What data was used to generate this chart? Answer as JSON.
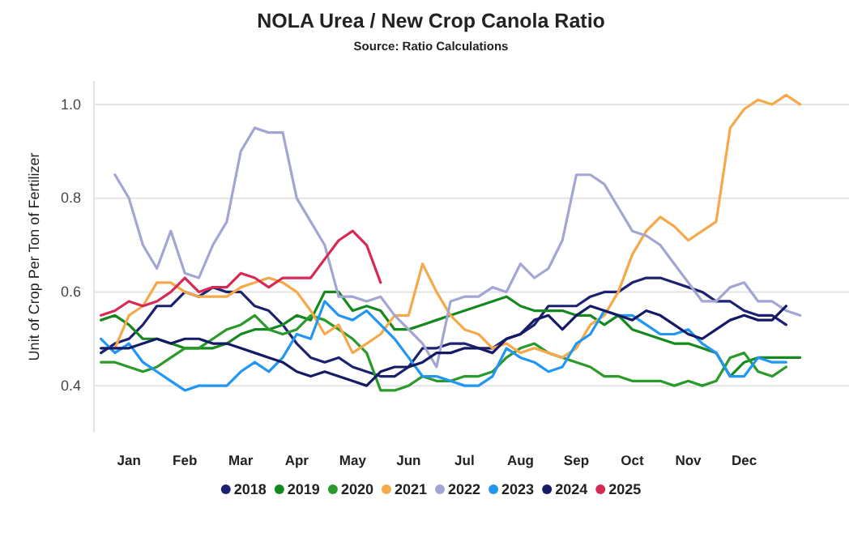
{
  "chart_data": {
    "type": "line",
    "title": "NOLA Urea / New Crop Canola Ratio",
    "subtitle": "Source: Ratio Calculations",
    "ylabel": "Unit of Crop Per Ton of Fertilizer",
    "categories": [
      null,
      null,
      "Jan",
      null,
      null,
      null,
      "Feb",
      null,
      null,
      null,
      "Mar",
      null,
      null,
      null,
      "Apr",
      null,
      null,
      null,
      "May",
      null,
      null,
      null,
      "Jun",
      null,
      null,
      null,
      "Jul",
      null,
      null,
      null,
      "Aug",
      null,
      null,
      null,
      "Sep",
      null,
      null,
      null,
      "Oct",
      null,
      null,
      null,
      "Nov",
      null,
      null,
      null,
      "Dec",
      null,
      null,
      null,
      null
    ],
    "ylim": [
      0.3,
      1.05
    ],
    "yticks": [
      {
        "value": 0.4,
        "label": "0.4"
      },
      {
        "value": 0.6,
        "label": "0.6"
      },
      {
        "value": 0.8,
        "label": "0.8"
      },
      {
        "value": 1.0,
        "label": "1.0"
      }
    ],
    "grid": "y",
    "legend": "bottom",
    "marker": "none",
    "line_style": "solid",
    "series": [
      {
        "name": "2018",
        "color": "#1c2270",
        "values": [
          0.47,
          0.49,
          0.5,
          0.53,
          0.57,
          0.57,
          0.6,
          0.59,
          0.61,
          0.6,
          0.6,
          0.57,
          0.56,
          0.53,
          0.49,
          0.46,
          0.45,
          0.46,
          0.44,
          0.43,
          0.42,
          0.42,
          0.44,
          0.48,
          0.48,
          0.49,
          0.49,
          0.48,
          0.48,
          0.5,
          0.51,
          0.53,
          0.57,
          0.57,
          0.57,
          0.59,
          0.6,
          0.6,
          0.62,
          0.63,
          0.63,
          0.62,
          0.61,
          0.6,
          0.58,
          0.58,
          0.56,
          0.55,
          0.55,
          0.53,
          null
        ]
      },
      {
        "name": "2019",
        "color": "#16891e",
        "values": [
          0.54,
          0.55,
          0.53,
          0.5,
          0.5,
          0.49,
          0.48,
          0.48,
          0.48,
          0.49,
          0.51,
          0.52,
          0.52,
          0.53,
          0.55,
          0.54,
          0.6,
          0.6,
          0.56,
          0.57,
          0.56,
          0.52,
          0.52,
          0.53,
          0.54,
          0.55,
          0.56,
          0.57,
          0.58,
          0.59,
          0.57,
          0.56,
          0.56,
          0.56,
          0.55,
          0.55,
          0.53,
          0.55,
          0.52,
          0.51,
          0.5,
          0.49,
          0.49,
          0.48,
          0.47,
          0.42,
          0.45,
          0.46,
          0.46,
          0.46,
          0.46
        ]
      },
      {
        "name": "2020",
        "color": "#2a9a2a",
        "values": [
          0.45,
          0.45,
          0.44,
          0.43,
          0.44,
          0.46,
          0.48,
          0.48,
          0.5,
          0.52,
          0.53,
          0.55,
          0.52,
          0.51,
          0.52,
          0.55,
          0.54,
          0.52,
          0.5,
          0.47,
          0.39,
          0.39,
          0.4,
          0.42,
          0.41,
          0.41,
          0.42,
          0.42,
          0.43,
          0.46,
          0.48,
          0.49,
          0.47,
          0.46,
          0.45,
          0.44,
          0.42,
          0.42,
          0.41,
          0.41,
          0.41,
          0.4,
          0.41,
          0.4,
          0.41,
          0.46,
          0.47,
          0.43,
          0.42,
          0.44,
          null
        ]
      },
      {
        "name": "2021",
        "color": "#f5a94a",
        "values": [
          null,
          0.48,
          0.55,
          0.57,
          0.62,
          0.62,
          0.6,
          0.59,
          0.59,
          0.59,
          0.61,
          0.62,
          0.63,
          0.62,
          0.6,
          0.56,
          0.51,
          0.53,
          0.47,
          0.49,
          0.51,
          0.55,
          0.55,
          0.66,
          0.6,
          0.55,
          0.52,
          0.51,
          0.48,
          0.49,
          0.47,
          0.48,
          0.47,
          0.46,
          0.48,
          0.53,
          0.55,
          0.6,
          0.68,
          0.73,
          0.76,
          0.74,
          0.71,
          0.73,
          0.75,
          0.95,
          0.99,
          1.01,
          1.0,
          1.02,
          1.0
        ]
      },
      {
        "name": "2022",
        "color": "#a3a6d2",
        "values": [
          null,
          0.85,
          0.8,
          0.7,
          0.65,
          0.73,
          0.64,
          0.63,
          0.7,
          0.75,
          0.9,
          0.95,
          0.94,
          0.94,
          0.8,
          0.75,
          0.7,
          0.59,
          0.59,
          0.58,
          0.59,
          0.55,
          0.52,
          0.49,
          0.44,
          0.58,
          0.59,
          0.59,
          0.61,
          0.6,
          0.66,
          0.63,
          0.65,
          0.71,
          0.85,
          0.85,
          0.83,
          0.78,
          0.73,
          0.72,
          0.7,
          0.66,
          0.62,
          0.58,
          0.58,
          0.61,
          0.62,
          0.58,
          0.58,
          0.56,
          0.55
        ]
      },
      {
        "name": "2023",
        "color": "#2196f3",
        "values": [
          0.5,
          0.47,
          0.49,
          0.45,
          0.43,
          0.41,
          0.39,
          0.4,
          0.4,
          0.4,
          0.43,
          0.45,
          0.43,
          0.46,
          0.51,
          0.5,
          0.58,
          0.55,
          0.54,
          0.56,
          0.53,
          0.5,
          0.46,
          0.42,
          0.42,
          0.41,
          0.4,
          0.4,
          0.42,
          0.48,
          0.46,
          0.45,
          0.43,
          0.44,
          0.49,
          0.51,
          0.56,
          0.55,
          0.55,
          0.53,
          0.51,
          0.51,
          0.52,
          0.49,
          0.47,
          0.42,
          0.42,
          0.46,
          0.45,
          0.45,
          null
        ]
      },
      {
        "name": "2024",
        "color": "#151a66",
        "values": [
          0.48,
          0.48,
          0.48,
          0.49,
          0.5,
          0.49,
          0.5,
          0.5,
          0.49,
          0.49,
          0.48,
          0.47,
          0.46,
          0.45,
          0.43,
          0.42,
          0.43,
          0.42,
          0.41,
          0.4,
          0.43,
          0.44,
          0.44,
          0.45,
          0.47,
          0.47,
          0.48,
          0.48,
          0.47,
          0.5,
          0.51,
          0.54,
          0.55,
          0.52,
          0.55,
          0.57,
          0.56,
          0.55,
          0.54,
          0.56,
          0.55,
          0.53,
          0.51,
          0.5,
          0.52,
          0.54,
          0.55,
          0.54,
          0.54,
          0.57,
          null
        ]
      },
      {
        "name": "2025",
        "color": "#d62a55",
        "values": [
          0.55,
          0.56,
          0.58,
          0.57,
          0.58,
          0.6,
          0.63,
          0.6,
          0.61,
          0.61,
          0.64,
          0.63,
          0.61,
          0.63,
          0.63,
          0.63,
          0.67,
          0.71,
          0.73,
          0.7,
          0.62,
          null,
          null,
          null,
          null,
          null,
          null,
          null,
          null,
          null,
          null,
          null,
          null,
          null,
          null,
          null,
          null,
          null,
          null,
          null,
          null,
          null,
          null,
          null,
          null,
          null,
          null,
          null,
          null,
          null,
          null
        ]
      }
    ]
  }
}
